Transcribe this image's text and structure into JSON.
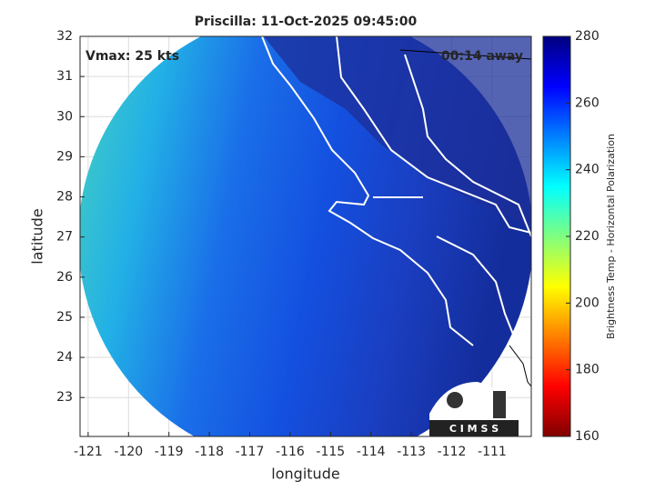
{
  "chart_data": {
    "type": "map",
    "title": "Priscilla: 11-Oct-2025 09:45:00",
    "xlabel": "longitude",
    "ylabel": "latitude",
    "xlim": [
      -121.2,
      -110.03
    ],
    "ylim": [
      22.03,
      32
    ],
    "xticks": [
      -121,
      -120,
      -119,
      -118,
      -117,
      -116,
      -115,
      -114,
      -113,
      -112,
      -111
    ],
    "yticks": [
      23,
      24,
      25,
      26,
      27,
      28,
      29,
      30,
      31,
      32
    ],
    "grid": true,
    "annotations": [
      "Vmax: 25 kts",
      "00:14 away"
    ],
    "logo": "C I M S S",
    "colorbar": {
      "label": "Brightness Temp - Horizontal Polarization",
      "lim": [
        160,
        280
      ],
      "ticks": [
        160,
        180,
        200,
        220,
        240,
        260,
        280
      ]
    }
  }
}
